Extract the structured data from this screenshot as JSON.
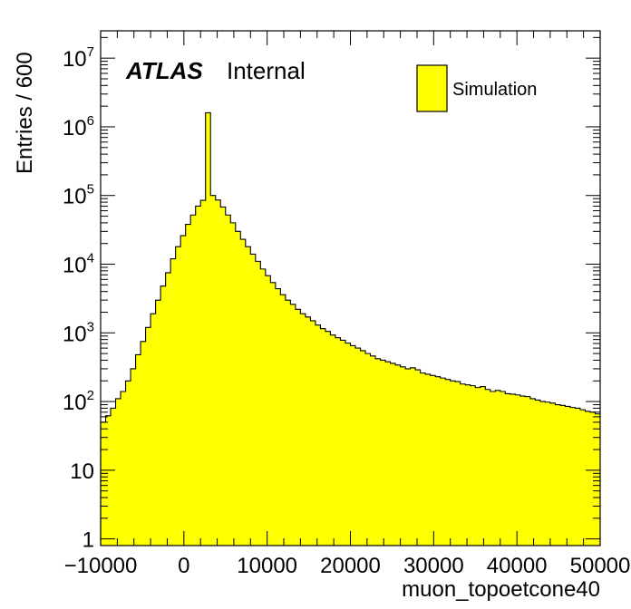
{
  "colors": {
    "fill": "#ffff00",
    "line": "#000000",
    "background": "#ffffff"
  },
  "label": {
    "experiment": "ATLAS",
    "status": "Internal"
  },
  "chart_data": {
    "type": "bar",
    "subtype": "histogram",
    "xlabel": "muon_topoetcone40",
    "ylabel": "Entries / 600",
    "xlim": [
      -10000,
      50000
    ],
    "ylim": [
      0.8,
      25000000
    ],
    "yscale": "log",
    "bin_width": 600,
    "grid": false,
    "legend": {
      "position": "top-right",
      "entries": [
        {
          "name": "Simulation",
          "color": "#ffff00"
        }
      ]
    },
    "x_ticks": [
      {
        "value": -10000,
        "label": "−10000"
      },
      {
        "value": 0,
        "label": "0"
      },
      {
        "value": 10000,
        "label": "10000"
      },
      {
        "value": 20000,
        "label": "20000"
      },
      {
        "value": 30000,
        "label": "30000"
      },
      {
        "value": 40000,
        "label": "40000"
      },
      {
        "value": 50000,
        "label": "50000"
      }
    ],
    "y_ticks": [
      {
        "value": 1,
        "base": "1",
        "exp": ""
      },
      {
        "value": 10,
        "base": "10",
        "exp": ""
      },
      {
        "value": 100,
        "base": "10",
        "exp": "2"
      },
      {
        "value": 1000,
        "base": "10",
        "exp": "3"
      },
      {
        "value": 10000,
        "base": "10",
        "exp": "4"
      },
      {
        "value": 100000,
        "base": "10",
        "exp": "5"
      },
      {
        "value": 1000000,
        "base": "10",
        "exp": "6"
      },
      {
        "value": 10000000,
        "base": "10",
        "exp": "7"
      }
    ],
    "series": [
      {
        "name": "Simulation",
        "bin_start": -10000,
        "values": [
          50,
          62,
          80,
          110,
          140,
          200,
          300,
          480,
          750,
          1200,
          1900,
          3000,
          4800,
          7500,
          12000,
          18000,
          26000,
          38000,
          52000,
          70000,
          85000,
          1600000,
          100000,
          86000,
          68000,
          52000,
          40000,
          30000,
          23000,
          18000,
          14000,
          11000,
          8500,
          6800,
          5400,
          4400,
          3600,
          3000,
          2600,
          2200,
          1900,
          1700,
          1500,
          1300,
          1150,
          1050,
          930,
          850,
          780,
          710,
          650,
          600,
          550,
          500,
          460,
          420,
          400,
          380,
          360,
          340,
          320,
          300,
          310,
          290,
          260,
          250,
          240,
          230,
          220,
          210,
          200,
          195,
          180,
          175,
          170,
          160,
          165,
          150,
          140,
          145,
          140,
          130,
          128,
          125,
          120,
          118,
          110,
          105,
          100,
          98,
          95,
          90,
          88,
          85,
          82,
          80,
          76,
          72,
          70,
          66
        ]
      }
    ]
  }
}
